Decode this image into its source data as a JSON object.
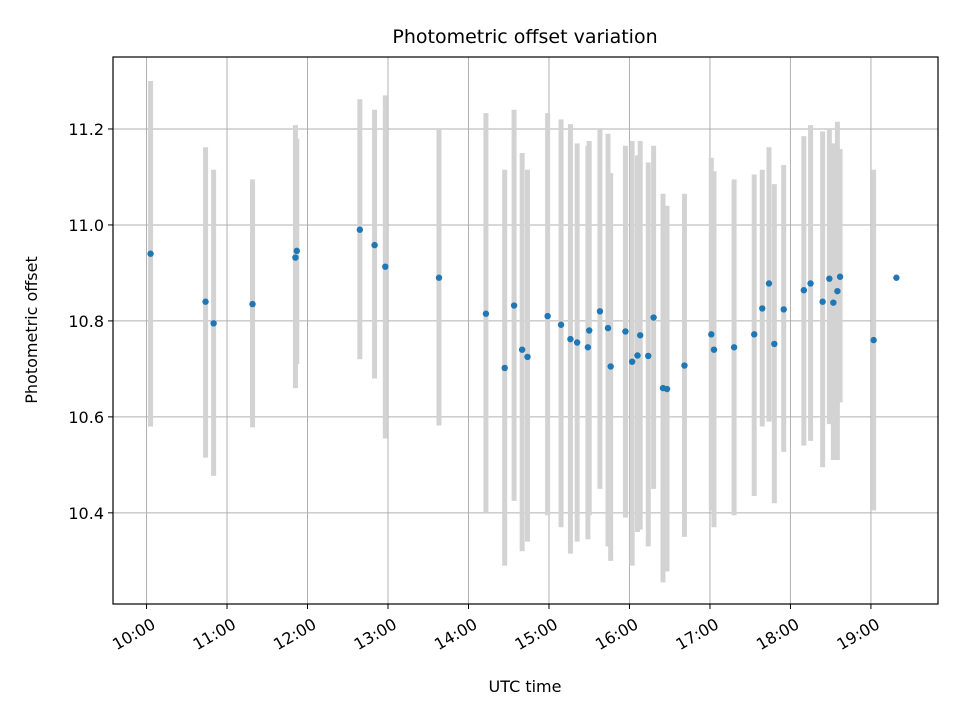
{
  "chart_data": {
    "type": "scatter",
    "title": "Photometric offset variation",
    "xlabel": "UTC time",
    "ylabel": "Photometric offset",
    "x_ticks": [
      "10:00",
      "11:00",
      "12:00",
      "13:00",
      "14:00",
      "15:00",
      "16:00",
      "17:00",
      "18:00",
      "19:00"
    ],
    "y_ticks": [
      "10.4",
      "10.6",
      "10.8",
      "11.0",
      "11.2"
    ],
    "xlim": [
      "09:35",
      "19:50"
    ],
    "ylim": [
      10.21,
      11.35
    ],
    "grid": true,
    "colors": {
      "point": "#1f77b4",
      "errorbar": "#d3d3d3"
    },
    "series": [
      {
        "x": [
          "10:03",
          "10:44",
          "10:50",
          "11:19",
          "11:51",
          "11:52",
          "12:39",
          "12:50",
          "12:58",
          "13:38",
          "14:13",
          "14:27",
          "14:34",
          "14:40",
          "14:44",
          "14:59",
          "15:09",
          "15:16",
          "15:21",
          "15:29",
          "15:30",
          "15:38",
          "15:44",
          "15:46",
          "15:57",
          "16:02",
          "16:06",
          "16:08",
          "16:14",
          "16:18",
          "16:25",
          "16:28",
          "16:41",
          "17:01",
          "17:03",
          "17:18",
          "17:33",
          "17:39",
          "17:44",
          "17:48",
          "17:55",
          "18:10",
          "18:15",
          "18:24",
          "18:29",
          "18:32",
          "18:35",
          "18:37",
          "19:02",
          "19:19"
        ],
        "y": [
          10.94,
          10.84,
          10.795,
          10.835,
          10.932,
          10.946,
          10.99,
          10.958,
          10.913,
          10.89,
          10.815,
          10.702,
          10.832,
          10.74,
          10.725,
          10.81,
          10.792,
          10.762,
          10.755,
          10.745,
          10.78,
          10.82,
          10.785,
          10.705,
          10.778,
          10.715,
          10.728,
          10.77,
          10.727,
          10.807,
          10.66,
          10.658,
          10.707,
          10.772,
          10.74,
          10.745,
          10.772,
          10.826,
          10.878,
          10.752,
          10.824,
          10.864,
          10.878,
          10.84,
          10.888,
          10.838,
          10.862,
          10.892,
          10.76,
          10.89
        ],
        "y_low": [
          10.58,
          10.515,
          10.477,
          10.578,
          10.66,
          10.71,
          10.72,
          10.68,
          10.555,
          10.582,
          10.4,
          10.29,
          10.425,
          10.32,
          10.34,
          10.395,
          10.37,
          10.315,
          10.34,
          10.345,
          10.395,
          10.45,
          10.33,
          10.3,
          10.39,
          10.29,
          10.36,
          10.365,
          10.33,
          10.45,
          10.255,
          10.278,
          10.35,
          10.405,
          10.37,
          10.395,
          10.435,
          10.58,
          10.59,
          10.42,
          10.527,
          10.54,
          10.55,
          10.495,
          10.585,
          10.51,
          10.51,
          10.63,
          10.405,
          10.89
        ],
        "y_high": [
          11.3,
          11.162,
          11.115,
          11.095,
          11.208,
          11.18,
          11.262,
          11.24,
          11.27,
          11.2,
          11.233,
          11.115,
          11.24,
          11.15,
          11.115,
          11.233,
          11.22,
          11.21,
          11.17,
          11.165,
          11.175,
          11.198,
          11.19,
          11.108,
          11.165,
          11.175,
          11.145,
          11.175,
          11.13,
          11.165,
          11.065,
          11.04,
          11.065,
          11.14,
          11.112,
          11.095,
          11.105,
          11.115,
          11.162,
          11.085,
          11.125,
          11.185,
          11.208,
          11.195,
          11.2,
          11.17,
          11.215,
          11.158,
          11.115,
          10.89
        ]
      }
    ]
  }
}
